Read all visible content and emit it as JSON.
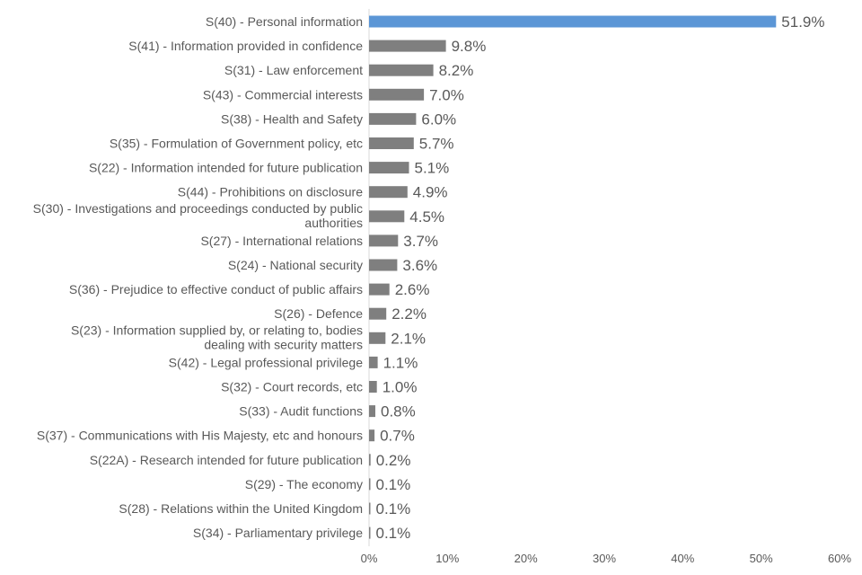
{
  "chart_data": {
    "type": "bar",
    "orientation": "horizontal",
    "categories": [
      [
        "S(40) - Personal information"
      ],
      [
        "S(41) - Information provided in confidence"
      ],
      [
        "S(31) - Law enforcement"
      ],
      [
        "S(43) - Commercial interests"
      ],
      [
        "S(38) - Health and Safety"
      ],
      [
        "S(35) - Formulation of Government policy, etc"
      ],
      [
        "S(22) - Information intended for future publication"
      ],
      [
        "S(44) - Prohibitions on disclosure"
      ],
      [
        "S(30) - Investigations and proceedings conducted by public",
        "authorities"
      ],
      [
        "S(27) - International relations"
      ],
      [
        "S(24) - National security"
      ],
      [
        "S(36) - Prejudice to effective conduct of public affairs"
      ],
      [
        "S(26) - Defence"
      ],
      [
        "S(23) - Information supplied by, or relating to, bodies",
        "dealing with security matters"
      ],
      [
        "S(42) - Legal professional privilege"
      ],
      [
        "S(32) - Court records, etc"
      ],
      [
        "S(33) - Audit functions"
      ],
      [
        "S(37) - Communications with His Majesty, etc and honours"
      ],
      [
        "S(22A) - Research intended for future publication"
      ],
      [
        "S(29) - The economy"
      ],
      [
        "S(28) - Relations within the United Kingdom"
      ],
      [
        "S(34) - Parliamentary privilege"
      ]
    ],
    "values": [
      51.9,
      9.8,
      8.2,
      7.0,
      6.0,
      5.7,
      5.1,
      4.9,
      4.5,
      3.7,
      3.6,
      2.6,
      2.2,
      2.1,
      1.1,
      1.0,
      0.8,
      0.7,
      0.2,
      0.1,
      0.1,
      0.1
    ],
    "value_labels": [
      "51.9%",
      "9.8%",
      "8.2%",
      "7.0%",
      "6.0%",
      "5.7%",
      "5.1%",
      "4.9%",
      "4.5%",
      "3.7%",
      "3.6%",
      "2.6%",
      "2.2%",
      "2.1%",
      "1.1%",
      "1.0%",
      "0.8%",
      "0.7%",
      "0.2%",
      "0.1%",
      "0.1%",
      "0.1%"
    ],
    "xlim": [
      0,
      60
    ],
    "x_ticks": [
      0,
      10,
      20,
      30,
      40,
      50,
      60
    ],
    "x_tick_labels": [
      "0%",
      "10%",
      "20%",
      "30%",
      "40%",
      "50%",
      "60%"
    ],
    "grid": false,
    "colors": {
      "highlight": "#5b96d6",
      "bar": "#7f7f7f",
      "axis": "#d9d9d9",
      "text": "#595959"
    }
  }
}
